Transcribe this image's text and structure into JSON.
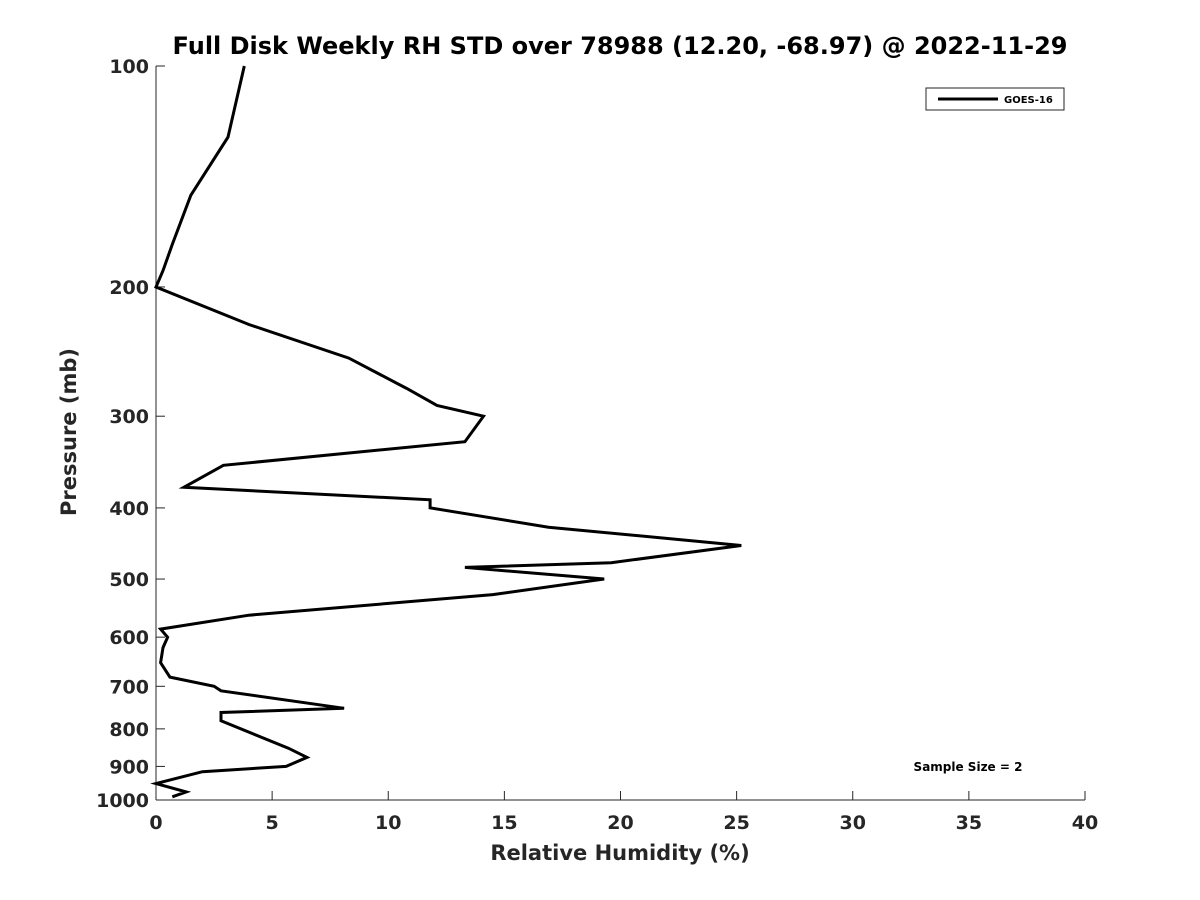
{
  "chart_data": {
    "type": "line",
    "title": "Full Disk Weekly RH STD over 78988 (12.20, -68.97) @ 2022-11-29",
    "xlabel": "Relative Humidity (%)",
    "ylabel": "Pressure (mb)",
    "xlim": [
      0,
      40
    ],
    "ylim": [
      100,
      1000
    ],
    "y_scale": "log",
    "y_reversed": true,
    "x_ticks": [
      0,
      5,
      10,
      15,
      20,
      25,
      30,
      35,
      40
    ],
    "x_tick_labels": [
      "0",
      "5",
      "10",
      "15",
      "20",
      "25",
      "30",
      "35",
      "40"
    ],
    "y_ticks": [
      100,
      200,
      300,
      400,
      500,
      600,
      700,
      800,
      900,
      1000
    ],
    "y_tick_labels": [
      "100",
      "200",
      "300",
      "400",
      "500",
      "600",
      "700",
      "800",
      "900",
      "1000"
    ],
    "grid": false,
    "legend_position": "top-right",
    "annotation": "Sample Size = 2",
    "series": [
      {
        "name": "GOES-16",
        "color": "#000000",
        "x": [
          3.8,
          3.1,
          1.5,
          0.7,
          0.3,
          0.0,
          4.0,
          8.3,
          10.8,
          12.1,
          14.1,
          13.3,
          2.9,
          1.2,
          11.8,
          11.8,
          16.9,
          25.2,
          19.6,
          13.3,
          19.3,
          14.5,
          4.0,
          0.2,
          0.5,
          0.3,
          0.2,
          0.6,
          2.5,
          2.8,
          8.1,
          2.8,
          2.8,
          5.7,
          6.5,
          5.6,
          2.0,
          0.0,
          1.3,
          0.7
        ],
        "y": [
          100,
          125,
          150,
          175,
          190,
          200,
          225,
          250,
          275,
          290,
          300,
          325,
          350,
          375,
          390,
          400,
          425,
          450,
          475,
          482,
          500,
          525,
          560,
          585,
          600,
          620,
          650,
          680,
          700,
          710,
          750,
          760,
          780,
          850,
          875,
          900,
          915,
          950,
          975,
          990
        ]
      }
    ]
  }
}
